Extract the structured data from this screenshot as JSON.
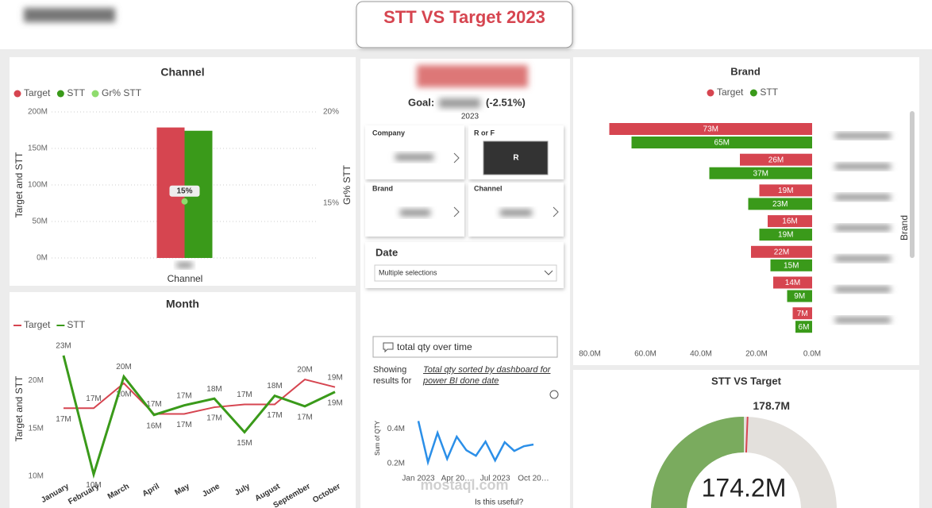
{
  "header": {
    "title": "STT VS Target 2023"
  },
  "kpi": {
    "goal_label": "Goal:",
    "goal_delta": "(-2.51%)",
    "year": "2023"
  },
  "slicers": [
    {
      "label": "Company"
    },
    {
      "label": "R or F",
      "value": "R"
    },
    {
      "label": "Brand"
    },
    {
      "label": "Channel"
    }
  ],
  "date_slicer": {
    "label": "Date",
    "value": "Multiple selections"
  },
  "qna": {
    "query": "total qty over time",
    "showing": "Showing results for",
    "result": "Total qty sorted by dashboard for power BI done date",
    "feedback": "Is this useful?"
  },
  "watermark": "mostaql.com",
  "chart_data": [
    {
      "type": "bar",
      "title": "Channel",
      "categories": [
        null
      ],
      "series": [
        {
          "name": "Target",
          "color": "#d64550",
          "values": [
            178.7
          ]
        },
        {
          "name": "STT",
          "color": "#3a9a1a",
          "values": [
            174.2
          ]
        },
        {
          "name": "Gr% STT",
          "color": "#8fdc6e",
          "axis": "y2",
          "values": [
            15.1
          ],
          "value_labels": [
            "15%"
          ]
        }
      ],
      "ylim": [
        0,
        200
      ],
      "yticks": [
        {
          "value": 0,
          "label": "0M"
        },
        {
          "value": 50,
          "label": "50M"
        },
        {
          "value": 100,
          "label": "100M"
        },
        {
          "value": 150,
          "label": "150M"
        },
        {
          "value": 200,
          "label": "200M"
        }
      ],
      "y2lim": [
        12,
        20
      ],
      "y2ticks": [
        {
          "value": 15,
          "label": "15%"
        },
        {
          "value": 20,
          "label": "20%"
        }
      ],
      "ylabel": "Target and STT",
      "y2label": "Gr% STT",
      "xlabel": "Channel",
      "legend": "top-left",
      "grid": true
    },
    {
      "type": "line",
      "title": "Month",
      "ylabel": "Target and STT",
      "categories": [
        "January",
        "February",
        "March",
        "April",
        "May",
        "June",
        "July",
        "August",
        "September",
        "October"
      ],
      "series": [
        {
          "name": "Target",
          "color": "#d64550",
          "values": [
            17.1,
            17.1,
            19.7,
            16.5,
            16.5,
            17.2,
            17.5,
            17.5,
            20.1,
            19.3
          ],
          "value_labels": [
            "17M",
            "17M",
            "20M",
            "17M",
            "17M",
            "17M",
            "17M",
            "17M",
            "20M",
            "19M"
          ]
        },
        {
          "name": "STT",
          "color": "#3a9a1a",
          "values": [
            22.6,
            10.2,
            20.4,
            16.4,
            17.4,
            18.1,
            14.6,
            18.4,
            17.3,
            18.8
          ],
          "value_labels": [
            "23M",
            "10M",
            "20M",
            "16M",
            "17M",
            "18M",
            "15M",
            "18M",
            "17M",
            "19M"
          ]
        }
      ],
      "ylim": [
        10,
        23.5
      ],
      "yticks": [
        {
          "value": 10,
          "label": "10M"
        },
        {
          "value": 15,
          "label": "15M"
        },
        {
          "value": 20,
          "label": "20M"
        }
      ],
      "legend": "top-left"
    },
    {
      "type": "barh",
      "title": "Brand",
      "ylabel": "Brand",
      "categories": [
        null,
        null,
        null,
        null,
        null,
        null,
        null
      ],
      "series": [
        {
          "name": "Target",
          "color": "#d64550",
          "values": [
            73,
            26,
            19,
            16,
            22,
            14,
            7
          ],
          "value_labels": [
            "73M",
            "26M",
            "19M",
            "16M",
            "22M",
            "14M",
            "7M"
          ]
        },
        {
          "name": "STT",
          "color": "#3a9a1a",
          "values": [
            65,
            37,
            23,
            19,
            15,
            9,
            6
          ],
          "value_labels": [
            "65M",
            "37M",
            "23M",
            "19M",
            "15M",
            "9M",
            "6M"
          ]
        }
      ],
      "xlim": [
        80,
        0
      ],
      "xticks": [
        {
          "value": 80,
          "label": "80.0M"
        },
        {
          "value": 60,
          "label": "60.0M"
        },
        {
          "value": 40,
          "label": "40.0M"
        },
        {
          "value": 20,
          "label": "20.0M"
        },
        {
          "value": 0,
          "label": "0.0M"
        }
      ],
      "legend": "top-center"
    },
    {
      "type": "gauge",
      "title": "STT VS Target",
      "value": 174.2,
      "value_label": "174.2M",
      "target": 178.7,
      "target_label": "178.7M",
      "range": [
        0,
        348.4
      ],
      "color": "#7aab5e",
      "track_color": "#e3e0dc",
      "target_color": "#d64550"
    },
    {
      "type": "line",
      "ylabel": "Sum of QTY",
      "color": "#2b8fe8",
      "values": [
        0.445,
        0.208,
        0.377,
        0.227,
        0.355,
        0.277,
        0.245,
        0.327,
        0.218,
        0.323,
        0.273,
        0.3,
        0.31
      ],
      "xlim": [
        0,
        12
      ],
      "xticks": [
        {
          "value": 0,
          "label": "Jan 2023"
        },
        {
          "value": 4,
          "label": "Apr 20…"
        },
        {
          "value": 8,
          "label": "Jul 2023"
        },
        {
          "value": 12,
          "label": "Oct 20…"
        }
      ],
      "ylim": [
        0.15,
        0.47
      ],
      "yticks": [
        {
          "value": 0.2,
          "label": "0.2M"
        },
        {
          "value": 0.4,
          "label": "0.4M"
        }
      ]
    }
  ]
}
